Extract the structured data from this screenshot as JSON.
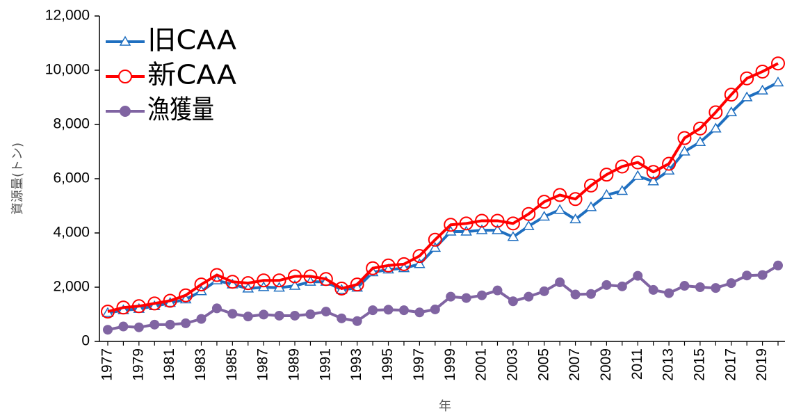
{
  "chart_data": {
    "type": "line",
    "x_label": "年",
    "y_label": "資源量(トン)",
    "categories": [
      "1977",
      null,
      "1979",
      null,
      "1981",
      null,
      "1983",
      null,
      "1985",
      null,
      "1987",
      null,
      "1989",
      null,
      "1991",
      null,
      "1993",
      null,
      "1995",
      null,
      "1997",
      null,
      "1999",
      null,
      "2001",
      null,
      "2003",
      null,
      "2005",
      null,
      "2007",
      null,
      "2009",
      null,
      "2011",
      null,
      "2013",
      null,
      "2015",
      null,
      "2017",
      null,
      "2019",
      null
    ],
    "series": [
      {
        "name": "旧CAA",
        "color": "#1f6fc0",
        "marker": "triangle",
        "values": [
          1050,
          1150,
          1200,
          1300,
          1420,
          1550,
          1850,
          2250,
          2100,
          1950,
          2000,
          1980,
          2050,
          2200,
          2200,
          1900,
          1980,
          2550,
          2650,
          2700,
          2850,
          3450,
          4050,
          4050,
          4100,
          4100,
          3850,
          4250,
          4600,
          4850,
          4500,
          4950,
          5400,
          5550,
          6100,
          5900,
          6300,
          7000,
          7350,
          7850,
          8450,
          9000,
          9250,
          9550
        ]
      },
      {
        "name": "新CAA",
        "color": "#ff0000",
        "marker": "circle-open",
        "values": [
          1100,
          1250,
          1300,
          1400,
          1500,
          1700,
          2100,
          2450,
          2200,
          2150,
          2250,
          2250,
          2400,
          2400,
          2300,
          1950,
          2100,
          2700,
          2800,
          2850,
          3150,
          3750,
          4300,
          4350,
          4450,
          4450,
          4350,
          4700,
          5150,
          5400,
          5250,
          5750,
          6150,
          6450,
          6600,
          6250,
          6550,
          7500,
          7850,
          8450,
          9100,
          9700,
          9950,
          10250
        ]
      },
      {
        "name": "漁獲量",
        "color": "#8064a2",
        "marker": "circle",
        "values": [
          430,
          550,
          520,
          620,
          620,
          670,
          830,
          1220,
          1020,
          920,
          990,
          950,
          950,
          1000,
          1100,
          850,
          750,
          1150,
          1170,
          1150,
          1070,
          1180,
          1650,
          1600,
          1700,
          1880,
          1480,
          1650,
          1850,
          2180,
          1730,
          1750,
          2080,
          2030,
          2420,
          1900,
          1780,
          2050,
          2000,
          1970,
          2150,
          2430,
          2450,
          2800
        ]
      }
    ],
    "ylim": [
      0,
      12000
    ],
    "yticks": [
      0,
      {
        "value": 2000,
        "label": "2,000"
      },
      {
        "value": 4000,
        "label": "4,000"
      },
      {
        "value": 6000,
        "label": "6,000"
      },
      {
        "value": 8000,
        "label": "8,000"
      },
      {
        "value": 10000,
        "label": "10,000"
      },
      {
        "value": 12000,
        "label": "12,000"
      }
    ],
    "legend": "upper-left",
    "grid": false
  }
}
